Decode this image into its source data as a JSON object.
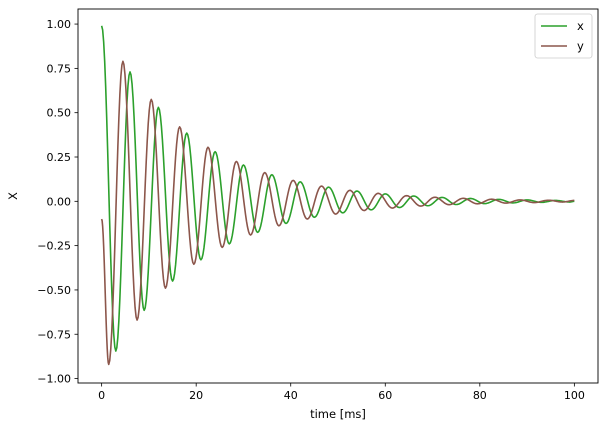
{
  "chart_data": {
    "type": "line",
    "title": "",
    "xlabel": "time [ms]",
    "ylabel": "X",
    "xlim": [
      -5,
      105
    ],
    "ylim": [
      -1.025,
      1.085
    ],
    "xticks": [
      0,
      20,
      40,
      60,
      80,
      100
    ],
    "xtick_labels": [
      "0",
      "20",
      "40",
      "60",
      "80",
      "100"
    ],
    "yticks": [
      -1.0,
      -0.75,
      -0.5,
      -0.25,
      0.0,
      0.25,
      0.5,
      0.75,
      1.0
    ],
    "ytick_labels": [
      "−1.00",
      "−0.75",
      "−0.50",
      "−0.25",
      "0.00",
      "0.25",
      "0.50",
      "0.75",
      "1.00"
    ],
    "grid": false,
    "legend_position": "top-right",
    "series": [
      {
        "name": "x",
        "color": "#2ca02c",
        "x": [
          0.0,
          3.0,
          6.0,
          9.0,
          12.0,
          15.0,
          18.0,
          21.0,
          24.0,
          27.0,
          30.0,
          33.0,
          36.0,
          39.0,
          42.0,
          45.0,
          48.0,
          51.0,
          54.0,
          57.0,
          60.0,
          63.0,
          66.0,
          69.0,
          72.0,
          75.0,
          78.0,
          81.0,
          84.0,
          87.0,
          90.0,
          93.0,
          96.0,
          99.0,
          100.0
        ],
        "values": [
          0.99,
          -0.845,
          0.73,
          -0.615,
          0.53,
          -0.45,
          0.385,
          -0.33,
          0.28,
          -0.24,
          0.205,
          -0.175,
          0.15,
          -0.125,
          0.11,
          -0.09,
          0.08,
          -0.065,
          0.058,
          -0.048,
          0.042,
          -0.035,
          0.03,
          -0.025,
          0.022,
          -0.018,
          0.016,
          -0.013,
          0.011,
          -0.009,
          0.008,
          -0.006,
          0.005,
          -0.004,
          0.0
        ]
      },
      {
        "name": "y",
        "color": "#8c564b",
        "x": [
          0.0,
          1.5,
          4.5,
          7.5,
          10.5,
          13.5,
          16.5,
          19.5,
          22.5,
          25.5,
          28.5,
          31.5,
          34.5,
          37.5,
          40.5,
          43.5,
          46.5,
          49.5,
          52.5,
          55.5,
          58.5,
          61.5,
          64.5,
          67.5,
          70.5,
          73.5,
          76.5,
          79.5,
          82.5,
          85.5,
          88.5,
          91.5,
          94.5,
          97.5,
          100.0
        ],
        "values": [
          -0.1,
          -0.92,
          0.79,
          -0.67,
          0.575,
          -0.49,
          0.42,
          -0.355,
          0.305,
          -0.26,
          0.225,
          -0.19,
          0.162,
          -0.138,
          0.118,
          -0.1,
          0.086,
          -0.072,
          0.062,
          -0.052,
          0.045,
          -0.038,
          0.032,
          -0.027,
          0.023,
          -0.019,
          0.017,
          -0.014,
          0.012,
          -0.01,
          0.008,
          -0.007,
          0.006,
          -0.004,
          0.005
        ]
      }
    ]
  }
}
